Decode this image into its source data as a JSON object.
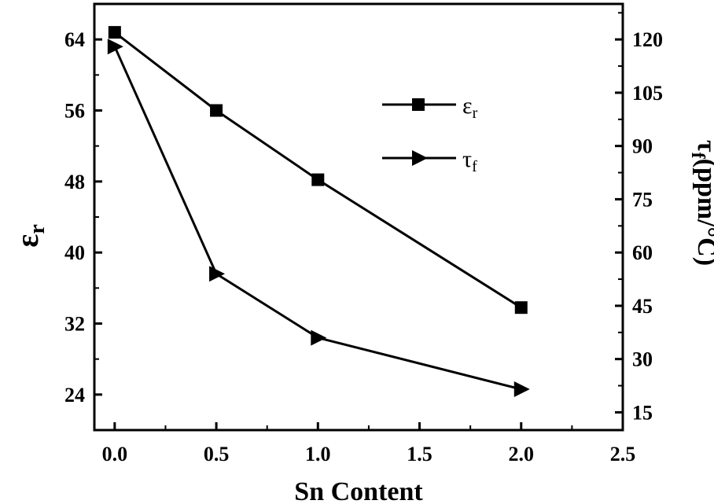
{
  "chart_data": {
    "type": "line",
    "x_axis": {
      "label": "Sn Content",
      "range": [
        -0.1,
        2.5
      ],
      "ticks": [
        "0.0",
        "0.5",
        "1.0",
        "1.5",
        "2.0",
        "2.5"
      ]
    },
    "y_axis_left": {
      "label": "ε",
      "label_subscript": "r",
      "range": [
        20,
        68
      ],
      "ticks": [
        "24",
        "32",
        "40",
        "48",
        "56",
        "64"
      ]
    },
    "y_axis_right": {
      "label": "τ",
      "label_subscript": "f",
      "label_suffix": "(ppm/°C)",
      "range": [
        10,
        130
      ],
      "ticks": [
        "15",
        "30",
        "45",
        "60",
        "75",
        "90",
        "105",
        "120"
      ]
    },
    "series": [
      {
        "name": "ε",
        "name_subscript": "r",
        "axis": "left",
        "marker": "square",
        "x": [
          0.0,
          0.5,
          1.0,
          2.0
        ],
        "y": [
          64.8,
          56.0,
          48.2,
          33.8
        ]
      },
      {
        "name": "τ",
        "name_subscript": "f",
        "axis": "right",
        "marker": "triangle-right",
        "x": [
          0.0,
          0.5,
          1.0,
          2.0
        ],
        "y": [
          118,
          54,
          36,
          21.5
        ]
      }
    ],
    "legend_position": "top-right",
    "grid": false,
    "color": "#000000"
  }
}
